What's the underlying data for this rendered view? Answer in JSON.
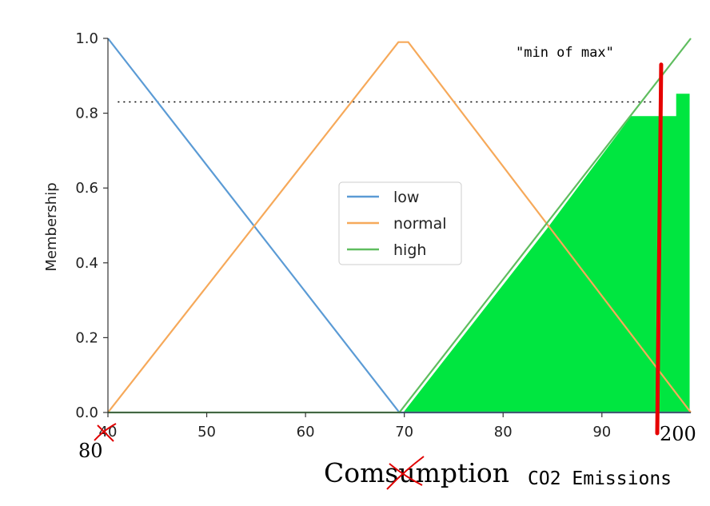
{
  "chart_data": {
    "type": "line",
    "xlim": [
      40,
      99
    ],
    "ylim": [
      0,
      1
    ],
    "x_ticks": [
      40,
      50,
      60,
      70,
      80,
      90
    ],
    "y_ticks": [
      "0.0",
      "0.2",
      "0.4",
      "0.6",
      "0.8",
      "1.0"
    ],
    "ylabel": "Membership",
    "xlabel": "",
    "grid": false,
    "legend_position": "center",
    "series": [
      {
        "name": "low",
        "color": "#5b9bd5",
        "points": [
          [
            40,
            1.0
          ],
          [
            69.5,
            0.0
          ],
          [
            99,
            0.0
          ]
        ]
      },
      {
        "name": "normal",
        "color": "#f6a95a",
        "points": [
          [
            40,
            0.0
          ],
          [
            69.4,
            0.99
          ],
          [
            70.4,
            0.99
          ],
          [
            99,
            0.0
          ]
        ]
      },
      {
        "name": "high",
        "color": "#5fbd5f",
        "points": [
          [
            40,
            0.0
          ],
          [
            69.5,
            0.0
          ],
          [
            99,
            1.0
          ]
        ]
      }
    ],
    "fill_region": {
      "color": "#00e640",
      "points": [
        [
          70,
          0.0
        ],
        [
          84.5,
          0.49
        ],
        [
          93,
          0.79
        ],
        [
          97.6,
          0.79
        ],
        [
          97.6,
          0.85
        ],
        [
          98.8,
          0.85
        ],
        [
          98.8,
          0.0
        ]
      ]
    },
    "dotted_line": {
      "y": 0.83,
      "x_from": 41,
      "x_to": 95.3
    },
    "red_line": {
      "x": [
        95.6,
        96.0
      ],
      "y": [
        0.0,
        0.93
      ],
      "color": "#e60000"
    },
    "annotations": {
      "min_of_max": "\"min of max\"",
      "x_start_replacement": "80",
      "x_end_replacement": "200",
      "xlabel_handwritten": "Comsumption",
      "xlabel_replacement": "CO2 Emissions"
    }
  }
}
